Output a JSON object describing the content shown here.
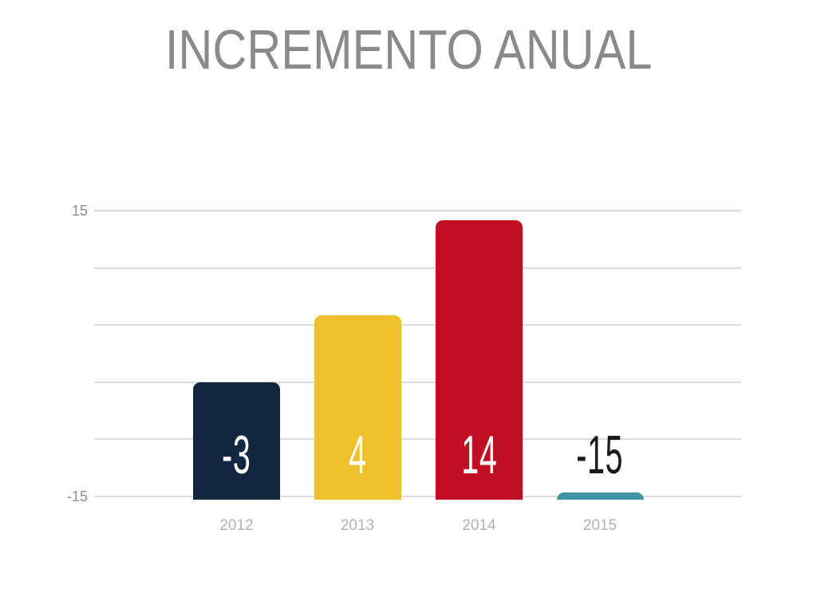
{
  "page": {
    "background": "#ffffff"
  },
  "chart_data": {
    "type": "bar",
    "title": "INCREMENTO ANUAL",
    "categories": [
      "2012",
      "2013",
      "2014",
      "2015"
    ],
    "values": [
      -3,
      4,
      14,
      -15
    ],
    "data_labels": [
      "-3",
      "4",
      "14",
      "-15"
    ],
    "series_colors": [
      "#132640",
      "#eec02b",
      "#c10e22",
      "#3f93a2"
    ],
    "data_label_colors": [
      "#ffffff",
      "#ffffff",
      "#ffffff",
      "#1b1b1b"
    ],
    "ylim": [
      -15,
      15
    ],
    "bar_base_value": -15,
    "y_axis_ticks": [
      {
        "label": "15",
        "value": 15
      },
      {
        "label": "-15",
        "value": -15
      }
    ],
    "gridline_values": [
      15,
      9,
      3,
      -3,
      -9,
      -15
    ],
    "grid": true,
    "legend": "none",
    "xlabel": "",
    "ylabel": "",
    "colors": {
      "title": "#8a8a8a",
      "gridline": "#dcdcdc",
      "y_tick_label": "#8f8f8f",
      "category_label": "#b3b3b3"
    }
  }
}
